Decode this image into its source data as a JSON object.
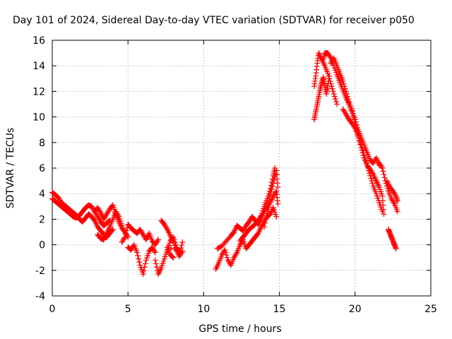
{
  "chart_data": {
    "type": "scatter",
    "title": "Day 101 of 2024, Sidereal Day-to-day VTEC variation (SDTVAR) for receiver p050",
    "xlabel": "GPS time / hours",
    "ylabel": "SDTVAR / TECUs",
    "xlim": [
      0,
      25
    ],
    "ylim": [
      -4,
      16
    ],
    "xticks": [
      0,
      5,
      10,
      15,
      20,
      25
    ],
    "yticks": [
      -4,
      -2,
      0,
      2,
      4,
      6,
      8,
      10,
      12,
      14,
      16
    ],
    "grid": true,
    "marker": "+",
    "color": "#ff0000",
    "series": [
      {
        "name": "SDTVAR",
        "segments": [
          [
            [
              0.0,
              3.6
            ],
            [
              0.2,
              3.4
            ],
            [
              0.4,
              3.2
            ],
            [
              0.6,
              3.0
            ],
            [
              0.8,
              2.8
            ],
            [
              1.0,
              2.6
            ],
            [
              1.2,
              2.4
            ],
            [
              1.4,
              2.2
            ],
            [
              1.6,
              2.1
            ],
            [
              1.8,
              2.3
            ],
            [
              2.0,
              2.6
            ],
            [
              2.2,
              2.9
            ],
            [
              2.4,
              3.1
            ],
            [
              2.6,
              3.0
            ],
            [
              2.8,
              2.6
            ],
            [
              3.0,
              2.2
            ],
            [
              3.2,
              1.8
            ],
            [
              3.4,
              1.5
            ],
            [
              3.6,
              1.7
            ],
            [
              3.8,
              1.9
            ]
          ],
          [
            [
              0.0,
              4.1
            ],
            [
              0.2,
              3.9
            ],
            [
              0.4,
              3.7
            ],
            [
              0.6,
              3.3
            ],
            [
              0.8,
              3.1
            ],
            [
              1.0,
              2.9
            ],
            [
              1.2,
              2.7
            ],
            [
              1.4,
              2.5
            ],
            [
              1.6,
              2.3
            ],
            [
              1.8,
              2.0
            ],
            [
              2.0,
              1.8
            ],
            [
              2.2,
              2.1
            ],
            [
              2.4,
              2.4
            ],
            [
              2.6,
              2.2
            ],
            [
              2.8,
              1.9
            ],
            [
              3.0,
              1.4
            ],
            [
              3.2,
              1.1
            ],
            [
              3.4,
              0.8
            ],
            [
              3.6,
              0.6
            ],
            [
              3.8,
              0.9
            ],
            [
              4.0,
              1.2
            ]
          ],
          [
            [
              2.8,
              2.6
            ],
            [
              3.0,
              2.9
            ],
            [
              3.2,
              2.5
            ],
            [
              3.4,
              2.0
            ],
            [
              3.6,
              2.4
            ],
            [
              3.8,
              2.8
            ],
            [
              4.0,
              3.1
            ],
            [
              4.2,
              2.4
            ],
            [
              4.4,
              1.8
            ],
            [
              4.6,
              1.3
            ],
            [
              4.8,
              1.0
            ],
            [
              5.0,
              0.6
            ]
          ],
          [
            [
              3.0,
              0.8
            ],
            [
              3.2,
              0.5
            ],
            [
              3.4,
              0.4
            ],
            [
              3.6,
              0.9
            ],
            [
              3.8,
              1.4
            ],
            [
              4.0,
              2.0
            ],
            [
              4.2,
              2.6
            ],
            [
              4.4,
              2.2
            ],
            [
              4.6,
              1.5
            ]
          ],
          [
            [
              4.6,
              0.2
            ],
            [
              4.8,
              0.6
            ],
            [
              5.0,
              1.6
            ],
            [
              5.2,
              1.3
            ],
            [
              5.4,
              1.1
            ],
            [
              5.6,
              0.9
            ],
            [
              5.8,
              1.2
            ],
            [
              6.0,
              0.8
            ],
            [
              6.2,
              0.4
            ],
            [
              6.4,
              0.9
            ],
            [
              6.6,
              0.3
            ],
            [
              6.8,
              0.0
            ],
            [
              7.0,
              0.4
            ]
          ],
          [
            [
              5.0,
              -0.2
            ],
            [
              5.2,
              -0.4
            ],
            [
              5.4,
              0.0
            ],
            [
              5.6,
              -0.6
            ],
            [
              5.8,
              -1.6
            ],
            [
              6.0,
              -2.3
            ],
            [
              6.2,
              -1.2
            ],
            [
              6.4,
              -0.5
            ],
            [
              6.6,
              -0.2
            ],
            [
              6.8,
              -0.6
            ]
          ],
          [
            [
              6.8,
              -1.2
            ],
            [
              7.0,
              -2.3
            ],
            [
              7.2,
              -1.8
            ],
            [
              7.4,
              -1.1
            ],
            [
              7.6,
              -0.4
            ],
            [
              7.8,
              0.3
            ],
            [
              8.0,
              0.6
            ],
            [
              8.2,
              -0.2
            ],
            [
              8.4,
              -0.7
            ],
            [
              8.6,
              0.2
            ]
          ],
          [
            [
              7.2,
              1.9
            ],
            [
              7.4,
              1.6
            ],
            [
              7.6,
              1.2
            ],
            [
              7.8,
              0.7
            ],
            [
              8.0,
              0.3
            ],
            [
              8.2,
              -0.4
            ],
            [
              8.4,
              -0.9
            ],
            [
              8.6,
              -0.5
            ],
            [
              7.6,
              -0.2
            ],
            [
              7.8,
              -0.8
            ],
            [
              8.0,
              -1.0
            ]
          ],
          [
            [
              10.8,
              -1.9
            ],
            [
              11.0,
              -1.4
            ],
            [
              11.2,
              -0.8
            ],
            [
              11.4,
              -0.4
            ],
            [
              11.6,
              -1.2
            ],
            [
              11.8,
              -1.6
            ],
            [
              12.0,
              -1.0
            ],
            [
              12.2,
              -0.6
            ],
            [
              12.4,
              0.0
            ],
            [
              12.6,
              0.4
            ],
            [
              12.8,
              -0.3
            ],
            [
              13.0,
              0.0
            ],
            [
              13.2,
              0.3
            ],
            [
              13.4,
              0.6
            ],
            [
              13.6,
              0.9
            ],
            [
              13.8,
              1.4
            ],
            [
              14.0,
              1.8
            ],
            [
              14.2,
              2.2
            ],
            [
              14.4,
              2.4
            ],
            [
              14.6,
              2.9
            ],
            [
              14.8,
              2.2
            ]
          ],
          [
            [
              10.9,
              -0.3
            ],
            [
              11.2,
              -0.1
            ],
            [
              11.5,
              0.3
            ],
            [
              11.8,
              0.7
            ],
            [
              12.0,
              1.0
            ],
            [
              12.2,
              1.5
            ],
            [
              12.4,
              1.3
            ],
            [
              12.6,
              1.1
            ],
            [
              12.8,
              1.5
            ],
            [
              13.0,
              1.8
            ],
            [
              13.2,
              2.2
            ],
            [
              13.4,
              1.9
            ],
            [
              13.6,
              1.6
            ],
            [
              13.8,
              2.0
            ],
            [
              14.0,
              2.6
            ],
            [
              14.2,
              3.0
            ],
            [
              14.4,
              3.9
            ],
            [
              14.6,
              4.8
            ],
            [
              14.8,
              5.8
            ],
            [
              14.9,
              4.5
            ]
          ],
          [
            [
              12.4,
              0.3
            ],
            [
              12.6,
              0.6
            ],
            [
              12.8,
              0.9
            ],
            [
              13.0,
              1.2
            ],
            [
              13.2,
              1.4
            ],
            [
              13.4,
              1.6
            ],
            [
              13.6,
              1.9
            ],
            [
              13.8,
              2.3
            ],
            [
              14.0,
              3.0
            ],
            [
              14.2,
              3.6
            ],
            [
              14.4,
              4.4
            ],
            [
              14.6,
              5.4
            ],
            [
              14.7,
              6.0
            ]
          ],
          [
            [
              14.0,
              1.4
            ],
            [
              14.2,
              2.6
            ],
            [
              14.4,
              3.3
            ],
            [
              14.6,
              3.8
            ],
            [
              14.8,
              4.2
            ],
            [
              14.9,
              3.2
            ]
          ],
          [
            [
              17.3,
              9.8
            ],
            [
              17.4,
              10.4
            ],
            [
              17.5,
              11.0
            ],
            [
              17.6,
              11.6
            ],
            [
              17.7,
              12.2
            ],
            [
              17.8,
              12.7
            ],
            [
              17.9,
              13.1
            ],
            [
              18.0,
              12.5
            ],
            [
              18.1,
              11.8
            ],
            [
              18.2,
              12.4
            ],
            [
              18.3,
              13.2
            ]
          ],
          [
            [
              17.3,
              12.4
            ],
            [
              17.4,
              13.2
            ],
            [
              17.5,
              14.2
            ],
            [
              17.6,
              15.0
            ],
            [
              17.8,
              14.5
            ],
            [
              18.0,
              14.0
            ],
            [
              18.2,
              13.4
            ],
            [
              18.4,
              12.6
            ],
            [
              18.6,
              11.8
            ],
            [
              18.8,
              11.0
            ]
          ],
          [
            [
              17.9,
              14.5
            ],
            [
              18.0,
              15.0
            ],
            [
              18.2,
              15.0
            ],
            [
              18.4,
              14.6
            ],
            [
              18.6,
              14.0
            ],
            [
              18.8,
              13.3
            ],
            [
              19.0,
              12.7
            ],
            [
              19.2,
              12.1
            ],
            [
              19.4,
              11.5
            ],
            [
              19.6,
              11.0
            ],
            [
              19.8,
              10.4
            ],
            [
              20.0,
              9.8
            ],
            [
              20.2,
              9.0
            ],
            [
              20.4,
              8.4
            ],
            [
              20.6,
              7.8
            ],
            [
              20.8,
              7.2
            ],
            [
              21.0,
              6.6
            ],
            [
              21.2,
              6.4
            ],
            [
              21.4,
              6.8
            ],
            [
              21.6,
              6.2
            ]
          ],
          [
            [
              18.4,
              14.2
            ],
            [
              18.6,
              14.6
            ],
            [
              18.8,
              14.0
            ],
            [
              19.0,
              13.4
            ],
            [
              19.2,
              12.8
            ],
            [
              19.4,
              12.0
            ],
            [
              19.6,
              11.2
            ],
            [
              19.8,
              10.5
            ],
            [
              20.0,
              9.6
            ],
            [
              20.2,
              8.6
            ],
            [
              20.4,
              7.6
            ],
            [
              20.6,
              6.8
            ],
            [
              20.8,
              6.2
            ],
            [
              21.0,
              5.9
            ],
            [
              21.2,
              5.5
            ],
            [
              21.4,
              5.0
            ],
            [
              21.6,
              4.5
            ],
            [
              21.8,
              3.8
            ],
            [
              21.9,
              2.4
            ]
          ],
          [
            [
              19.2,
              10.6
            ],
            [
              19.4,
              10.2
            ],
            [
              19.6,
              9.8
            ],
            [
              19.8,
              9.5
            ],
            [
              20.0,
              9.1
            ],
            [
              20.2,
              8.5
            ],
            [
              20.4,
              7.8
            ],
            [
              20.6,
              7.0
            ],
            [
              20.8,
              6.2
            ],
            [
              21.0,
              5.4
            ],
            [
              21.2,
              4.6
            ],
            [
              21.4,
              4.0
            ],
            [
              21.6,
              3.3
            ],
            [
              21.8,
              2.6
            ]
          ],
          [
            [
              21.6,
              6.4
            ],
            [
              21.8,
              6.0
            ],
            [
              22.0,
              5.0
            ],
            [
              22.2,
              4.2
            ],
            [
              22.4,
              3.6
            ],
            [
              22.6,
              3.2
            ],
            [
              22.8,
              2.6
            ]
          ],
          [
            [
              22.1,
              5.0
            ],
            [
              22.3,
              4.5
            ],
            [
              22.5,
              4.2
            ],
            [
              22.7,
              3.8
            ],
            [
              22.8,
              3.4
            ]
          ],
          [
            [
              22.2,
              1.2
            ],
            [
              22.3,
              0.9
            ],
            [
              22.4,
              0.6
            ],
            [
              22.5,
              0.3
            ],
            [
              22.6,
              0.0
            ],
            [
              22.7,
              -0.3
            ]
          ]
        ]
      }
    ]
  }
}
